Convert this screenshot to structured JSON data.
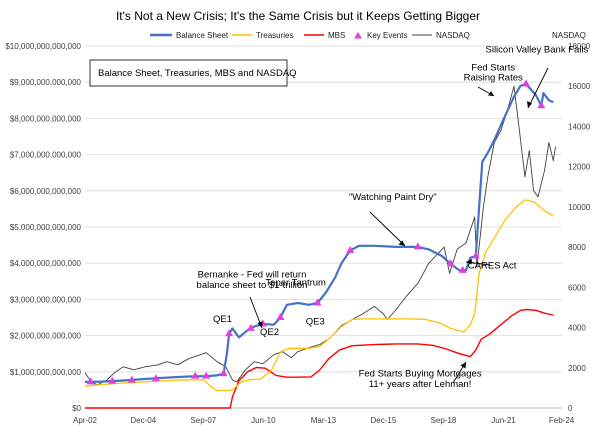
{
  "chart_data": {
    "type": "line",
    "title": "It's Not a New Crisis; It's the Same Crisis but it Keeps Getting Bigger",
    "subtitle_box": "Balance Sheet, Treasuries, MBS and NASDAQ",
    "y2_axis_title": "NASDAQ",
    "xlim": [
      2002.25,
      2024.1
    ],
    "ylim": [
      0,
      10000000000000
    ],
    "y2lim": [
      0,
      18000
    ],
    "x_ticks": [
      {
        "x": 2002.25,
        "label": "Apr-02"
      },
      {
        "x": 2004.92,
        "label": "Dec-04"
      },
      {
        "x": 2007.67,
        "label": "Sep-07"
      },
      {
        "x": 2010.42,
        "label": "Jun-10"
      },
      {
        "x": 2013.17,
        "label": "Mar-13"
      },
      {
        "x": 2015.92,
        "label": "Dec-15"
      },
      {
        "x": 2018.67,
        "label": "Sep-18"
      },
      {
        "x": 2021.42,
        "label": "Jun-21"
      },
      {
        "x": 2024.08,
        "label": "Feb-24"
      }
    ],
    "y_ticks": [
      {
        "y": 0,
        "label": "$0"
      },
      {
        "y": 1000000000000,
        "label": "$1,000,000,000,000"
      },
      {
        "y": 2000000000000,
        "label": "$2,000,000,000,000"
      },
      {
        "y": 3000000000000,
        "label": "$3,000,000,000,000"
      },
      {
        "y": 4000000000000,
        "label": "$4,000,000,000,000"
      },
      {
        "y": 5000000000000,
        "label": "$5,000,000,000,000"
      },
      {
        "y": 6000000000000,
        "label": "$6,000,000,000,000"
      },
      {
        "y": 7000000000000,
        "label": "$7,000,000,000,000"
      },
      {
        "y": 8000000000000,
        "label": "$8,000,000,000,000"
      },
      {
        "y": 9000000000000,
        "label": "$9,000,000,000,000"
      },
      {
        "y": 10000000000000,
        "label": "$10,000,000,000,000"
      }
    ],
    "y2_ticks": [
      {
        "y": 0,
        "label": "0"
      },
      {
        "y": 2000,
        "label": "2000"
      },
      {
        "y": 4000,
        "label": "4000"
      },
      {
        "y": 6000,
        "label": "6000"
      },
      {
        "y": 8000,
        "label": "8000"
      },
      {
        "y": 10000,
        "label": "10000"
      },
      {
        "y": 12000,
        "label": "12000"
      },
      {
        "y": 14000,
        "label": "14000"
      },
      {
        "y": 16000,
        "label": "16000"
      },
      {
        "y": 18000,
        "label": "18000"
      }
    ],
    "grid": true,
    "legend_position": "top",
    "series": [
      {
        "name": "Balance Sheet",
        "color": "#4472C4",
        "axis": "left",
        "points": [
          [
            2002.25,
            0.72
          ],
          [
            2003.0,
            0.73
          ],
          [
            2004.0,
            0.76
          ],
          [
            2005.0,
            0.8
          ],
          [
            2006.0,
            0.84
          ],
          [
            2007.0,
            0.87
          ],
          [
            2007.8,
            0.88
          ],
          [
            2008.3,
            0.9
          ],
          [
            2008.6,
            0.95
          ],
          [
            2008.75,
            1.5
          ],
          [
            2008.85,
            2.05
          ],
          [
            2009.0,
            2.2
          ],
          [
            2009.3,
            1.95
          ],
          [
            2009.5,
            2.05
          ],
          [
            2009.8,
            2.2
          ],
          [
            2010.0,
            2.25
          ],
          [
            2010.4,
            2.32
          ],
          [
            2010.9,
            2.3
          ],
          [
            2011.2,
            2.5
          ],
          [
            2011.5,
            2.85
          ],
          [
            2012.0,
            2.9
          ],
          [
            2012.5,
            2.85
          ],
          [
            2012.9,
            2.9
          ],
          [
            2013.3,
            3.2
          ],
          [
            2013.7,
            3.6
          ],
          [
            2014.0,
            4.0
          ],
          [
            2014.4,
            4.35
          ],
          [
            2014.8,
            4.48
          ],
          [
            2015.5,
            4.48
          ],
          [
            2016.5,
            4.45
          ],
          [
            2017.5,
            4.45
          ],
          [
            2018.0,
            4.38
          ],
          [
            2018.6,
            4.2
          ],
          [
            2019.0,
            3.98
          ],
          [
            2019.4,
            3.8
          ],
          [
            2019.7,
            3.8
          ],
          [
            2019.9,
            4.15
          ],
          [
            2020.15,
            4.2
          ],
          [
            2020.3,
            5.5
          ],
          [
            2020.45,
            6.8
          ],
          [
            2020.7,
            7.05
          ],
          [
            2021.0,
            7.4
          ],
          [
            2021.4,
            7.95
          ],
          [
            2021.9,
            8.6
          ],
          [
            2022.2,
            8.9
          ],
          [
            2022.45,
            8.95
          ],
          [
            2022.9,
            8.65
          ],
          [
            2023.15,
            8.35
          ],
          [
            2023.25,
            8.7
          ],
          [
            2023.5,
            8.5
          ],
          [
            2023.7,
            8.45
          ]
        ]
      },
      {
        "name": "Treasuries",
        "color": "#FFC000",
        "axis": "left",
        "points": [
          [
            2002.25,
            0.6
          ],
          [
            2003.0,
            0.65
          ],
          [
            2004.0,
            0.69
          ],
          [
            2005.0,
            0.72
          ],
          [
            2006.0,
            0.76
          ],
          [
            2007.0,
            0.78
          ],
          [
            2007.7,
            0.78
          ],
          [
            2008.0,
            0.6
          ],
          [
            2008.3,
            0.48
          ],
          [
            2008.7,
            0.48
          ],
          [
            2009.0,
            0.5
          ],
          [
            2009.4,
            0.72
          ],
          [
            2009.8,
            0.78
          ],
          [
            2010.3,
            0.8
          ],
          [
            2010.8,
            1.05
          ],
          [
            2011.2,
            1.55
          ],
          [
            2011.6,
            1.65
          ],
          [
            2012.0,
            1.65
          ],
          [
            2012.5,
            1.65
          ],
          [
            2013.0,
            1.7
          ],
          [
            2013.5,
            1.95
          ],
          [
            2014.0,
            2.25
          ],
          [
            2014.5,
            2.45
          ],
          [
            2015.0,
            2.46
          ],
          [
            2016.0,
            2.46
          ],
          [
            2017.0,
            2.46
          ],
          [
            2017.8,
            2.45
          ],
          [
            2018.5,
            2.35
          ],
          [
            2019.0,
            2.2
          ],
          [
            2019.6,
            2.1
          ],
          [
            2019.9,
            2.3
          ],
          [
            2020.1,
            2.6
          ],
          [
            2020.3,
            3.7
          ],
          [
            2020.6,
            4.3
          ],
          [
            2021.0,
            4.7
          ],
          [
            2021.5,
            5.2
          ],
          [
            2022.0,
            5.55
          ],
          [
            2022.4,
            5.75
          ],
          [
            2022.8,
            5.7
          ],
          [
            2023.3,
            5.45
          ],
          [
            2023.7,
            5.3
          ]
        ]
      },
      {
        "name": "MBS",
        "color": "#FF0000",
        "axis": "left",
        "points": [
          [
            2002.25,
            0.0
          ],
          [
            2008.9,
            0.0
          ],
          [
            2009.0,
            0.3
          ],
          [
            2009.3,
            0.75
          ],
          [
            2009.7,
            1.0
          ],
          [
            2010.1,
            1.12
          ],
          [
            2010.5,
            1.1
          ],
          [
            2011.0,
            0.9
          ],
          [
            2011.5,
            0.85
          ],
          [
            2012.0,
            0.85
          ],
          [
            2012.6,
            0.86
          ],
          [
            2013.0,
            1.05
          ],
          [
            2013.4,
            1.35
          ],
          [
            2013.9,
            1.6
          ],
          [
            2014.5,
            1.72
          ],
          [
            2015.5,
            1.75
          ],
          [
            2016.5,
            1.77
          ],
          [
            2017.5,
            1.77
          ],
          [
            2018.2,
            1.73
          ],
          [
            2018.8,
            1.63
          ],
          [
            2019.4,
            1.5
          ],
          [
            2019.9,
            1.42
          ],
          [
            2020.15,
            1.6
          ],
          [
            2020.4,
            1.9
          ],
          [
            2020.8,
            2.05
          ],
          [
            2021.3,
            2.3
          ],
          [
            2021.8,
            2.55
          ],
          [
            2022.2,
            2.7
          ],
          [
            2022.5,
            2.72
          ],
          [
            2022.9,
            2.7
          ],
          [
            2023.3,
            2.62
          ],
          [
            2023.7,
            2.57
          ]
        ]
      },
      {
        "name": "NASDAQ",
        "color": "#404040",
        "axis": "right",
        "points": [
          [
            2002.25,
            1750
          ],
          [
            2002.5,
            1350
          ],
          [
            2002.8,
            1150
          ],
          [
            2003.2,
            1350
          ],
          [
            2003.6,
            1750
          ],
          [
            2004.0,
            2050
          ],
          [
            2004.5,
            1900
          ],
          [
            2005.0,
            2050
          ],
          [
            2005.6,
            2150
          ],
          [
            2006.0,
            2300
          ],
          [
            2006.5,
            2150
          ],
          [
            2007.0,
            2450
          ],
          [
            2007.8,
            2750
          ],
          [
            2008.3,
            2300
          ],
          [
            2008.7,
            2050
          ],
          [
            2009.0,
            1400
          ],
          [
            2009.2,
            1300
          ],
          [
            2009.6,
            1900
          ],
          [
            2010.0,
            2300
          ],
          [
            2010.4,
            2200
          ],
          [
            2010.9,
            2650
          ],
          [
            2011.3,
            2800
          ],
          [
            2011.7,
            2500
          ],
          [
            2012.0,
            2800
          ],
          [
            2012.5,
            3000
          ],
          [
            2013.0,
            3150
          ],
          [
            2013.5,
            3500
          ],
          [
            2014.0,
            4100
          ],
          [
            2014.5,
            4400
          ],
          [
            2015.0,
            4700
          ],
          [
            2015.5,
            5050
          ],
          [
            2015.9,
            4700
          ],
          [
            2016.1,
            4400
          ],
          [
            2016.5,
            4900
          ],
          [
            2017.0,
            5600
          ],
          [
            2017.5,
            6200
          ],
          [
            2018.0,
            7200
          ],
          [
            2018.7,
            8000
          ],
          [
            2018.95,
            6700
          ],
          [
            2019.3,
            7900
          ],
          [
            2019.7,
            8200
          ],
          [
            2020.1,
            9500
          ],
          [
            2020.2,
            7000
          ],
          [
            2020.5,
            10000
          ],
          [
            2020.7,
            11500
          ],
          [
            2021.0,
            13200
          ],
          [
            2021.3,
            13800
          ],
          [
            2021.6,
            14800
          ],
          [
            2021.9,
            16000
          ],
          [
            2022.15,
            13800
          ],
          [
            2022.4,
            11500
          ],
          [
            2022.6,
            12800
          ],
          [
            2022.8,
            10800
          ],
          [
            2023.0,
            10500
          ],
          [
            2023.3,
            11800
          ],
          [
            2023.5,
            13200
          ],
          [
            2023.7,
            12300
          ],
          [
            2023.8,
            13000
          ]
        ]
      }
    ],
    "key_events": {
      "name": "Key Events",
      "color": "#E040E0",
      "points": [
        [
          2002.5,
          0.72
        ],
        [
          2003.5,
          0.74
        ],
        [
          2004.4,
          0.77
        ],
        [
          2005.5,
          0.81
        ],
        [
          2007.3,
          0.88
        ],
        [
          2007.8,
          0.88
        ],
        [
          2008.6,
          0.95
        ],
        [
          2008.85,
          2.05
        ],
        [
          2009.85,
          2.2
        ],
        [
          2010.4,
          2.32
        ],
        [
          2011.2,
          2.5
        ],
        [
          2012.9,
          2.9
        ],
        [
          2014.4,
          4.35
        ],
        [
          2017.5,
          4.45
        ],
        [
          2019.0,
          3.98
        ],
        [
          2019.55,
          3.8
        ],
        [
          2020.15,
          4.2
        ],
        [
          2022.45,
          8.95
        ],
        [
          2023.15,
          8.35
        ]
      ]
    },
    "annotations": [
      {
        "text": "Fed Starts",
        "x": 2020.95,
        "y": 9.33
      },
      {
        "text": "Raising Rates",
        "x": 2020.95,
        "y": 9.05
      },
      {
        "text": "Silicon Valley Bank Fails",
        "x": 2022.95,
        "y": 9.82
      },
      {
        "text": "\"Watching Paint Dry\"",
        "x": 2016.35,
        "y": 5.75
      },
      {
        "text": "Bernanke - Fed will return",
        "x": 2009.9,
        "y": 3.6
      },
      {
        "text": "balance sheet to $1-trillion",
        "x": 2009.9,
        "y": 3.32
      },
      {
        "text": "Taper Tantrum",
        "x": 2011.9,
        "y": 3.38
      },
      {
        "text": "CARES Act",
        "x": 2020.9,
        "y": 3.85
      },
      {
        "text": "QE1",
        "x": 2008.55,
        "y": 2.38
      },
      {
        "text": "QE2",
        "x": 2010.7,
        "y": 2.02
      },
      {
        "text": "QE3",
        "x": 2012.8,
        "y": 2.3
      },
      {
        "text": "Fed Starts Buying Mortgages",
        "x": 2017.6,
        "y": 0.87
      },
      {
        "text": "11+ years after Lehman!",
        "x": 2017.6,
        "y": 0.58
      }
    ]
  }
}
